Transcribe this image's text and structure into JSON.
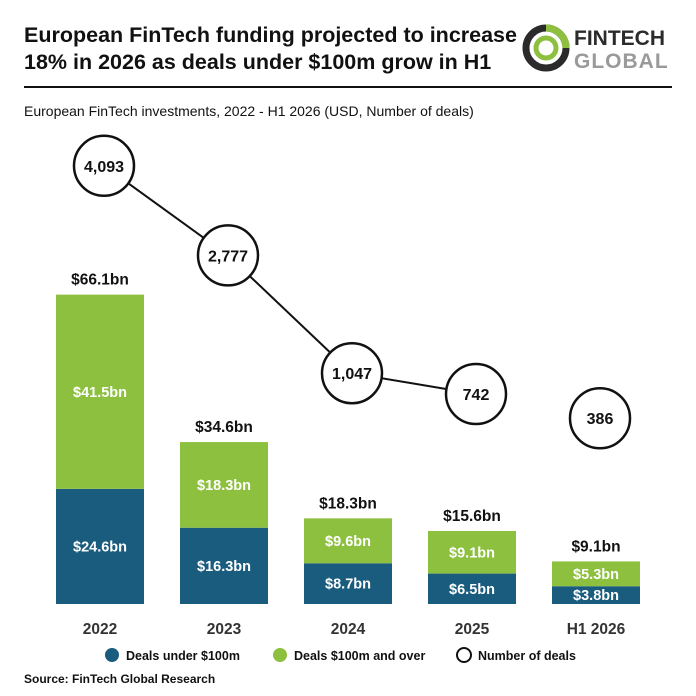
{
  "header": {
    "title": "European FinTech funding projected to increase 18% in 2026 as deals under $100m grow in H1",
    "logo_top": "FINTECH",
    "logo_bottom": "GLOBAL"
  },
  "chart_data": {
    "type": "bar",
    "subtitle": "European FinTech investments, 2022 - H1 2026 (USD, Number of deals)",
    "categories": [
      "2022",
      "2023",
      "2024",
      "2025",
      "H1 2026"
    ],
    "series": [
      {
        "name": "Deals under $100m",
        "values": [
          24.6,
          16.3,
          8.7,
          6.5,
          3.8
        ],
        "labels": [
          "$24.6bn",
          "$16.3bn",
          "$8.7bn",
          "$6.5bn",
          "$3.8bn"
        ],
        "color": "#1a5c7e"
      },
      {
        "name": "Deals $100m and over",
        "values": [
          41.5,
          18.3,
          9.6,
          9.1,
          5.3
        ],
        "labels": [
          "$41.5bn",
          "$18.3bn",
          "$9.6bn",
          "$9.1bn",
          "$5.3bn"
        ],
        "color": "#8dc03f"
      }
    ],
    "totals": [
      66.1,
      34.6,
      18.3,
      15.6,
      9.1
    ],
    "total_labels": [
      "$66.1bn",
      "$34.6bn",
      "$18.3bn",
      "$15.6bn",
      "$9.1bn"
    ],
    "line_series": {
      "name": "Number of deals",
      "values": [
        4093,
        2777,
        1047,
        742,
        386
      ],
      "labels": [
        "4,093",
        "2,777",
        "1,047",
        "742",
        "386"
      ]
    },
    "legend": [
      {
        "label": "Deals under $100m",
        "color": "#1a5c7e"
      },
      {
        "label": "Deals $100m and over",
        "color": "#8dc03f"
      },
      {
        "label": "Number of deals",
        "color": "#ffffff"
      }
    ],
    "legend_position": "bottom",
    "grid": false,
    "source": "Source: FinTech Global Research"
  }
}
